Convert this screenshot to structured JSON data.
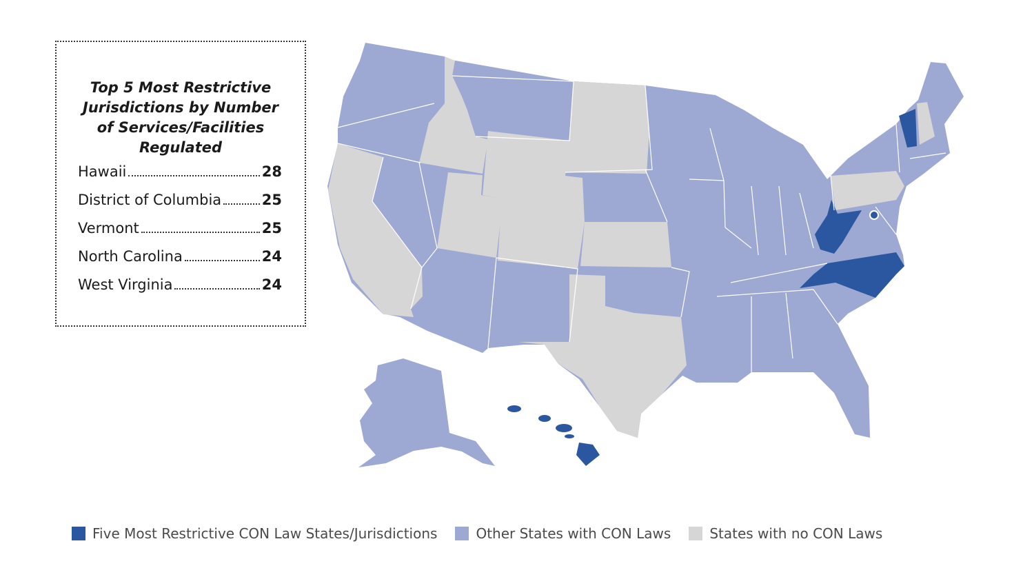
{
  "top5": {
    "title_lines": [
      "Top 5 Most Restrictive",
      "Jurisdictions by Number",
      "of Services/Facilities",
      "Regulated"
    ],
    "rows": [
      {
        "name": "Hawaii",
        "value": "28"
      },
      {
        "name": "District of Columbia",
        "value": "25"
      },
      {
        "name": "Vermont",
        "value": "25"
      },
      {
        "name": "North Carolina",
        "value": "24"
      },
      {
        "name": "West Virginia",
        "value": "24"
      }
    ]
  },
  "legend": {
    "items": [
      {
        "label": "Five Most Restrictive CON Law States/Jurisdictions",
        "color": "#2a579f"
      },
      {
        "label": "Other States with CON Laws",
        "color": "#9da8d3"
      },
      {
        "label": "States with no CON Laws",
        "color": "#d6d6d6"
      }
    ]
  },
  "colors": {
    "most_restrictive": "#2a579f",
    "other_con": "#9da8d3",
    "no_con": "#d6d6d6"
  }
}
